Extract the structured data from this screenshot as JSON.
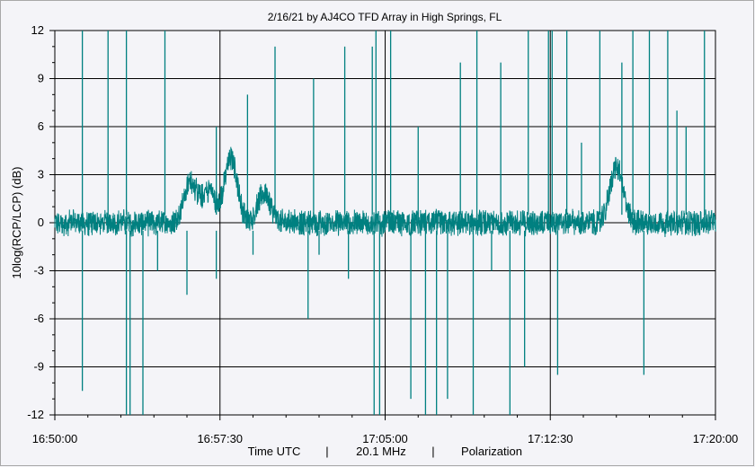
{
  "chart_data": {
    "type": "line",
    "title": "2/16/21  by  AJ4CO TFD Array  in  High Springs, FL",
    "ylabel": "10log(RCP/LCP) (dB)",
    "footer": {
      "xlabel": "Time UTC",
      "frequency": "20.1 MHz",
      "quantity": "Polarization"
    },
    "xlim": [
      "16:50:00",
      "17:20:00"
    ],
    "ylim": [
      -12,
      12
    ],
    "x_ticks": [
      "16:50:00",
      "16:57:30",
      "17:05:00",
      "17:12:30",
      "17:20:00"
    ],
    "y_ticks": [
      "12",
      "9",
      "6",
      "3",
      "0",
      "-3",
      "-6",
      "-9",
      "-12"
    ],
    "grid": true,
    "series": [
      {
        "color": "#008080",
        "baseline_db": 0.0,
        "bursts": [
          {
            "t": "16:56:10",
            "peak_db": 2.5
          },
          {
            "t": "16:57:00",
            "peak_db": 2.0
          },
          {
            "t": "16:58:00",
            "peak_db": 4.0
          },
          {
            "t": "16:59:30",
            "peak_db": 1.8
          },
          {
            "t": "17:15:30",
            "peak_db": 3.5
          }
        ],
        "upward_spikes_db": [
          {
            "t": "16:51:15",
            "v": 12
          },
          {
            "t": "16:52:25",
            "v": 12
          },
          {
            "t": "16:53:15",
            "v": 12
          },
          {
            "t": "16:55:00",
            "v": 12
          },
          {
            "t": "16:57:20",
            "v": 6
          },
          {
            "t": "16:58:45",
            "v": 8
          },
          {
            "t": "17:00:00",
            "v": 11
          },
          {
            "t": "17:01:45",
            "v": 9
          },
          {
            "t": "17:03:10",
            "v": 11
          },
          {
            "t": "17:04:25",
            "v": 11
          },
          {
            "t": "17:04:35",
            "v": 12
          },
          {
            "t": "17:05:15",
            "v": 12
          },
          {
            "t": "17:06:30",
            "v": 6
          },
          {
            "t": "17:08:25",
            "v": 10
          },
          {
            "t": "17:09:10",
            "v": 12
          },
          {
            "t": "17:10:15",
            "v": 10
          },
          {
            "t": "17:11:30",
            "v": 12
          },
          {
            "t": "17:12:25",
            "v": 12
          },
          {
            "t": "17:12:35",
            "v": 12
          },
          {
            "t": "17:13:15",
            "v": 12
          },
          {
            "t": "17:13:55",
            "v": 5
          },
          {
            "t": "17:14:45",
            "v": 12
          },
          {
            "t": "17:15:45",
            "v": 10
          },
          {
            "t": "17:16:15",
            "v": 12
          },
          {
            "t": "17:17:00",
            "v": 12
          },
          {
            "t": "17:17:50",
            "v": 12
          },
          {
            "t": "17:18:15",
            "v": 7
          },
          {
            "t": "17:18:40",
            "v": 6
          },
          {
            "t": "17:19:30",
            "v": 12
          }
        ],
        "downward_spikes_db": [
          {
            "t": "16:51:15",
            "v": -10.5
          },
          {
            "t": "16:53:15",
            "v": -12
          },
          {
            "t": "16:53:25",
            "v": -12
          },
          {
            "t": "16:54:00",
            "v": -12
          },
          {
            "t": "16:54:40",
            "v": -3
          },
          {
            "t": "16:56:00",
            "v": -4.5
          },
          {
            "t": "16:57:20",
            "v": -3.5
          },
          {
            "t": "16:59:00",
            "v": -2
          },
          {
            "t": "17:01:30",
            "v": -6
          },
          {
            "t": "17:02:00",
            "v": -2
          },
          {
            "t": "17:03:20",
            "v": -3.5
          },
          {
            "t": "17:04:30",
            "v": -12
          },
          {
            "t": "17:04:45",
            "v": -12
          },
          {
            "t": "17:06:10",
            "v": -11
          },
          {
            "t": "17:06:50",
            "v": -12
          },
          {
            "t": "17:07:20",
            "v": -12
          },
          {
            "t": "17:07:50",
            "v": -11
          },
          {
            "t": "17:09:00",
            "v": -12
          },
          {
            "t": "17:09:50",
            "v": -3
          },
          {
            "t": "17:10:40",
            "v": -12
          },
          {
            "t": "17:11:20",
            "v": -9
          },
          {
            "t": "17:12:50",
            "v": -9.5
          },
          {
            "t": "17:16:45",
            "v": -9.5
          }
        ]
      }
    ]
  }
}
